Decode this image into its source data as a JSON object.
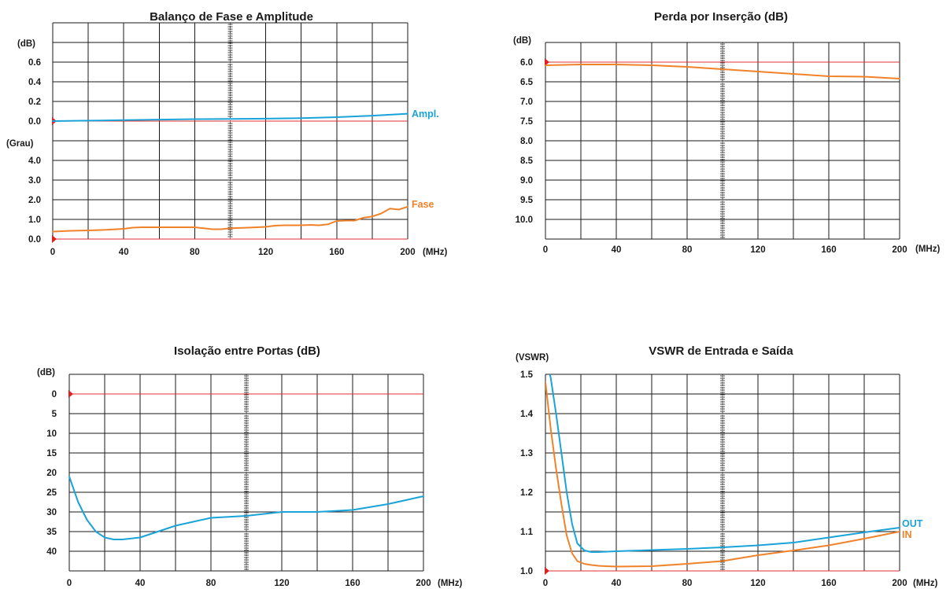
{
  "colors": {
    "blue": "#1aa3d9",
    "orange": "#f0822a",
    "ref": "#e03030",
    "grid": "#1a1a1a"
  },
  "chart_data": [
    {
      "id": "c1",
      "type": "line",
      "title": "Balanço de Fase e Amplitude",
      "x_ticks": [
        "0",
        "40",
        "80",
        "120",
        "160",
        "200"
      ],
      "x_unit": "(MHz)",
      "xlim": [
        0,
        200
      ],
      "upper_unit": "(dB)",
      "upper_ticks": [
        "0.6",
        "0.4",
        "0.2",
        "0.0"
      ],
      "upper_ylim": [
        0,
        0.6
      ],
      "lower_unit": "(Grau)",
      "lower_ticks": [
        "4.0",
        "3.0",
        "2.0",
        "1.0",
        "0.0"
      ],
      "lower_ylim": [
        0,
        4.0
      ],
      "series": [
        {
          "name": "Ampl.",
          "panel": "upper",
          "color": "#1aa3d9",
          "x": [
            0,
            20,
            40,
            60,
            80,
            100,
            120,
            140,
            160,
            180,
            200
          ],
          "y": [
            0.0,
            0.005,
            0.01,
            0.015,
            0.02,
            0.022,
            0.025,
            0.03,
            0.04,
            0.055,
            0.075
          ]
        },
        {
          "name": "Fase",
          "panel": "lower",
          "color": "#f0822a",
          "x": [
            0,
            10,
            20,
            30,
            40,
            45,
            50,
            60,
            70,
            80,
            85,
            90,
            95,
            100,
            110,
            120,
            125,
            130,
            140,
            145,
            150,
            155,
            160,
            165,
            170,
            175,
            180,
            185,
            190,
            195,
            200
          ],
          "y": [
            0.38,
            0.42,
            0.44,
            0.47,
            0.52,
            0.58,
            0.6,
            0.6,
            0.6,
            0.6,
            0.55,
            0.5,
            0.5,
            0.55,
            0.58,
            0.62,
            0.68,
            0.7,
            0.7,
            0.72,
            0.7,
            0.75,
            0.92,
            0.94,
            0.94,
            1.08,
            1.15,
            1.3,
            1.55,
            1.5,
            1.65
          ]
        }
      ]
    },
    {
      "id": "c2",
      "type": "line",
      "title": "Perda por Inserção (dB)",
      "x_ticks": [
        "0",
        "40",
        "80",
        "120",
        "160",
        "200"
      ],
      "x_unit": "(MHz)",
      "xlim": [
        0,
        200
      ],
      "y_unit": "(dB)",
      "y_ticks": [
        "6.0",
        "6.5",
        "7.0",
        "7.5",
        "8.0",
        "8.5",
        "9.0",
        "9.5",
        "10.0"
      ],
      "ylim": [
        6.0,
        10.0
      ],
      "y_inverted": true,
      "series": [
        {
          "color": "#f0822a",
          "x": [
            0,
            20,
            40,
            60,
            80,
            100,
            120,
            140,
            160,
            180,
            200
          ],
          "y": [
            6.08,
            6.06,
            6.06,
            6.08,
            6.12,
            6.18,
            6.24,
            6.3,
            6.36,
            6.37,
            6.42
          ]
        }
      ]
    },
    {
      "id": "c3",
      "type": "line",
      "title": "Isolação entre Portas (dB)",
      "x_ticks": [
        "0",
        "40",
        "80",
        "120",
        "160",
        "200"
      ],
      "x_unit": "(MHz)",
      "xlim": [
        0,
        200
      ],
      "y_unit": "(dB)",
      "y_ticks": [
        "0",
        "5",
        "10",
        "15",
        "20",
        "25",
        "30",
        "35",
        "40"
      ],
      "ylim": [
        0,
        45
      ],
      "y_inverted": true,
      "series": [
        {
          "color": "#1aa3d9",
          "x": [
            0,
            5,
            10,
            15,
            20,
            25,
            30,
            40,
            50,
            60,
            70,
            80,
            100,
            120,
            140,
            160,
            180,
            200
          ],
          "y": [
            21,
            27.5,
            32,
            35,
            36.5,
            37,
            37,
            36.5,
            35,
            33.5,
            32.5,
            31.5,
            31,
            30,
            30,
            29.5,
            28,
            26
          ]
        }
      ]
    },
    {
      "id": "c4",
      "type": "line",
      "title": "VSWR de Entrada e Saída",
      "x_ticks": [
        "0",
        "40",
        "80",
        "120",
        "160",
        "200"
      ],
      "x_unit": "(MHz)",
      "xlim": [
        0,
        200
      ],
      "y_unit": "(VSWR)",
      "y_ticks": [
        "1.5",
        "1.4",
        "1.3",
        "1.2",
        "1.1",
        "1.0"
      ],
      "ylim": [
        1.0,
        1.5
      ],
      "series": [
        {
          "name": "OUT",
          "color": "#1aa3d9",
          "x": [
            0,
            3,
            6,
            9,
            12,
            15,
            18,
            22,
            26,
            30,
            40,
            60,
            80,
            100,
            120,
            140,
            160,
            180,
            200
          ],
          "y": [
            1.55,
            1.49,
            1.4,
            1.3,
            1.2,
            1.12,
            1.07,
            1.052,
            1.048,
            1.048,
            1.05,
            1.053,
            1.056,
            1.06,
            1.065,
            1.072,
            1.085,
            1.098,
            1.11
          ]
        },
        {
          "name": "IN",
          "color": "#f0822a",
          "x": [
            0,
            3,
            6,
            9,
            12,
            15,
            18,
            22,
            26,
            30,
            40,
            60,
            80,
            100,
            120,
            140,
            160,
            180,
            200
          ],
          "y": [
            1.48,
            1.36,
            1.26,
            1.17,
            1.09,
            1.045,
            1.025,
            1.018,
            1.015,
            1.013,
            1.011,
            1.012,
            1.018,
            1.025,
            1.04,
            1.052,
            1.065,
            1.082,
            1.1
          ]
        }
      ]
    }
  ]
}
